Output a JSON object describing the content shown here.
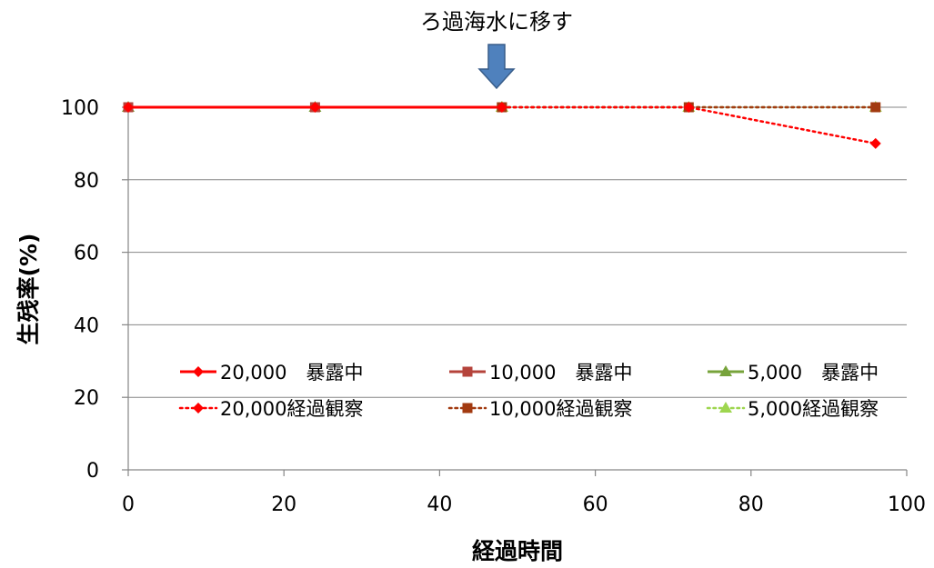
{
  "chart_data": {
    "type": "line",
    "xlabel": "経過時間",
    "ylabel": "生残率(%)",
    "xlim": [
      0,
      100
    ],
    "ylim": [
      0,
      100
    ],
    "x_ticks": [
      0,
      20,
      40,
      60,
      80,
      100
    ],
    "y_ticks": [
      0,
      20,
      40,
      60,
      80,
      100
    ],
    "grid": "horizontal",
    "legend_position": "lower-center",
    "annotation": {
      "text": "ろ過海水に移す",
      "x": 47,
      "arrow": "down"
    },
    "series": [
      {
        "name": "20,000　暴露中",
        "color": "#ff0000",
        "style": "solid",
        "marker": "diamond",
        "x": [
          0,
          24,
          48
        ],
        "y": [
          100,
          100,
          100
        ]
      },
      {
        "name": "10,000　暴露中",
        "color": "#b5433b",
        "style": "solid",
        "marker": "square",
        "x": [
          0,
          24,
          48
        ],
        "y": [
          100,
          100,
          100
        ]
      },
      {
        "name": "5,000　暴露中",
        "color": "#77a33b",
        "style": "solid",
        "marker": "triangle",
        "x": [
          0,
          24,
          48
        ],
        "y": [
          100,
          100,
          100
        ]
      },
      {
        "name": "20,000経過観察",
        "color": "#ff0000",
        "style": "dotted",
        "marker": "diamond",
        "x": [
          48,
          72,
          96
        ],
        "y": [
          100,
          100,
          90
        ]
      },
      {
        "name": "10,000経過観察",
        "color": "#a23a10",
        "style": "dotted",
        "marker": "square",
        "x": [
          48,
          72,
          96
        ],
        "y": [
          100,
          100,
          100
        ]
      },
      {
        "name": "5,000経過観察",
        "color": "#9ed64f",
        "style": "dotted",
        "marker": "triangle",
        "x": [
          48,
          72,
          96
        ],
        "y": [
          100,
          100,
          100
        ]
      }
    ]
  }
}
